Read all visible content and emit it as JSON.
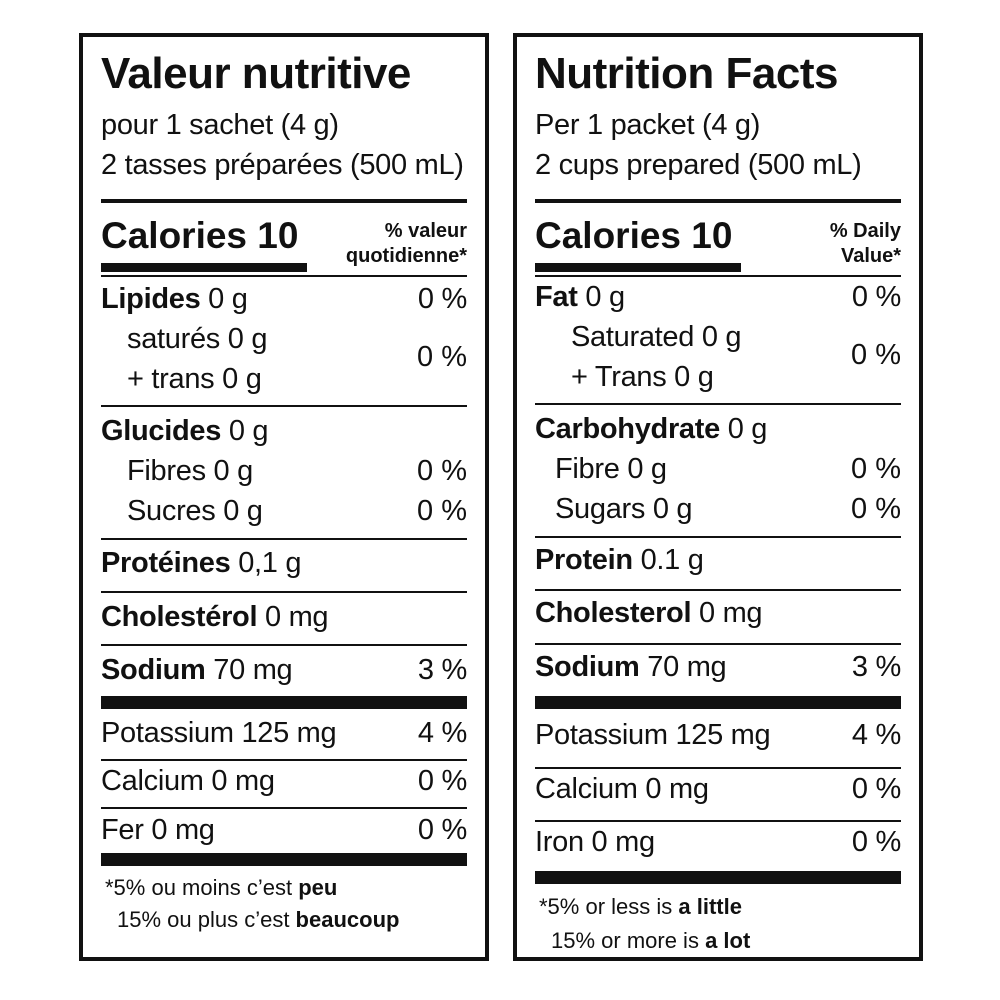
{
  "fr": {
    "title": "Valeur nutritive",
    "serving1": "pour 1 sachet (4 g)",
    "serving2": "2 tasses préparées (500 mL)",
    "calories_label": "Calories 10",
    "dv_line1": "% valeur",
    "dv_line2": "quotidienne*",
    "fat_label": "Lipides",
    "fat_amount": " 0 g",
    "fat_pct": "0 %",
    "sat_label": "saturés 0 g",
    "trans_label": "+ trans 0 g",
    "sat_trans_pct": "0 %",
    "carb_label": "Glucides",
    "carb_amount": " 0 g",
    "fibre_label": "Fibres 0 g",
    "fibre_pct": "0 %",
    "sugars_label": "Sucres 0 g",
    "sugars_pct": "0 %",
    "protein_label": "Protéines",
    "protein_amount": " 0,1 g",
    "chol_label": "Cholestérol",
    "chol_amount": " 0 mg",
    "sodium_label": "Sodium",
    "sodium_amount": " 70 mg",
    "sodium_pct": "3 %",
    "potassium_label": "Potassium 125 mg",
    "potassium_pct": "4 %",
    "calcium_label": "Calcium 0 mg",
    "calcium_pct": "0 %",
    "iron_label": "Fer 0 mg",
    "iron_pct": "0 %",
    "foot1_text": "*5% ou moins c’est ",
    "foot1_bold": "peu",
    "foot2_text": "15% ou plus c’est ",
    "foot2_bold": "beaucoup"
  },
  "en": {
    "title": "Nutrition Facts",
    "serving1": "Per 1 packet (4 g)",
    "serving2": "2 cups prepared (500 mL)",
    "calories_label": "Calories 10",
    "dv_line1": "% Daily",
    "dv_line2": "Value*",
    "fat_label": "Fat",
    "fat_amount": " 0 g",
    "fat_pct": "0 %",
    "sat_label": "Saturated 0 g",
    "trans_label": "+ Trans 0 g",
    "sat_trans_pct": "0 %",
    "carb_label": "Carbohydrate",
    "carb_amount": " 0 g",
    "fibre_label": "Fibre 0 g",
    "fibre_pct": "0 %",
    "sugars_label": "Sugars 0 g",
    "sugars_pct": "0 %",
    "protein_label": "Protein",
    "protein_amount": " 0.1 g",
    "chol_label": "Cholesterol",
    "chol_amount": " 0 mg",
    "sodium_label": "Sodium",
    "sodium_amount": " 70 mg",
    "sodium_pct": "3 %",
    "potassium_label": "Potassium 125 mg",
    "potassium_pct": "4 %",
    "calcium_label": "Calcium 0 mg",
    "calcium_pct": "0 %",
    "iron_label": "Iron 0 mg",
    "iron_pct": "0 %",
    "foot1_text": "*5% or less is ",
    "foot1_bold": "a little",
    "foot2_text": "15% or more is ",
    "foot2_bold": "a lot"
  }
}
